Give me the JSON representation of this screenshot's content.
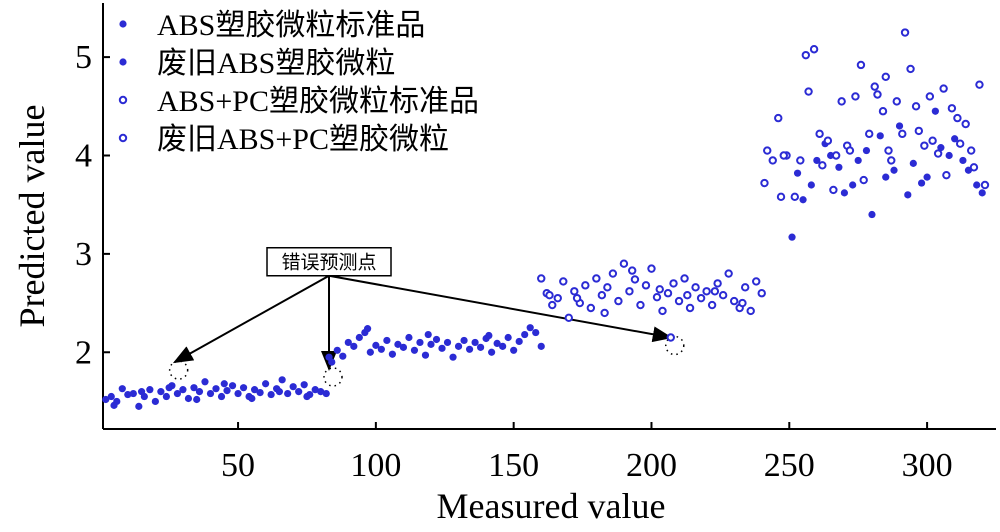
{
  "chart_data": {
    "type": "scatter",
    "xlabel": "Measured value",
    "ylabel": "Predicted value",
    "xlim": [
      1,
      325
    ],
    "ylim": [
      1.22,
      5.55
    ],
    "xticks": [
      50,
      100,
      150,
      200,
      250,
      300
    ],
    "yticks": [
      2,
      3,
      4,
      5
    ],
    "grid": false,
    "legend_position": "top-left",
    "accent_color": "#2b2bd4",
    "series": [
      {
        "name": "ABS塑胶微粒标准品",
        "marker": "filled",
        "points": [
          [
            2,
            1.52
          ],
          [
            4,
            1.55
          ],
          [
            6,
            1.5
          ],
          [
            8,
            1.63
          ],
          [
            10,
            1.57
          ],
          [
            12,
            1.58
          ],
          [
            14,
            1.45
          ],
          [
            16,
            1.55
          ],
          [
            18,
            1.62
          ],
          [
            20,
            1.5
          ],
          [
            22,
            1.6
          ],
          [
            24,
            1.55
          ],
          [
            26,
            1.66
          ],
          [
            28,
            1.58
          ],
          [
            30,
            1.62
          ],
          [
            32,
            1.53
          ],
          [
            34,
            1.64
          ],
          [
            36,
            1.6
          ],
          [
            38,
            1.7
          ],
          [
            40,
            1.58
          ],
          [
            42,
            1.63
          ],
          [
            44,
            1.55
          ],
          [
            46,
            1.61
          ],
          [
            48,
            1.66
          ],
          [
            50,
            1.58
          ],
          [
            52,
            1.64
          ],
          [
            54,
            1.55
          ],
          [
            56,
            1.62
          ],
          [
            58,
            1.59
          ],
          [
            60,
            1.68
          ],
          [
            62,
            1.57
          ],
          [
            64,
            1.63
          ],
          [
            66,
            1.72
          ],
          [
            68,
            1.58
          ],
          [
            70,
            1.65
          ],
          [
            72,
            1.6
          ],
          [
            74,
            1.67
          ],
          [
            76,
            1.57
          ],
          [
            78,
            1.62
          ],
          [
            80,
            1.6
          ],
          [
            82,
            1.58
          ],
          [
            5,
            1.46
          ],
          [
            15,
            1.6
          ],
          [
            25,
            1.64
          ],
          [
            35,
            1.52
          ],
          [
            45,
            1.68
          ],
          [
            55,
            1.53
          ],
          [
            65,
            1.6
          ],
          [
            75,
            1.55
          ],
          [
            83,
            1.95
          ],
          [
            84,
            1.9
          ],
          [
            86,
            2.02
          ],
          [
            88,
            1.96
          ],
          [
            90,
            2.1
          ],
          [
            92,
            2.06
          ],
          [
            94,
            2.15
          ],
          [
            96,
            2.2
          ],
          [
            98,
            2.0
          ],
          [
            100,
            2.07
          ],
          [
            102,
            2.03
          ],
          [
            104,
            2.12
          ],
          [
            106,
            1.98
          ],
          [
            108,
            2.08
          ],
          [
            110,
            2.05
          ],
          [
            112,
            2.15
          ],
          [
            114,
            2.02
          ],
          [
            116,
            2.1
          ],
          [
            118,
            1.97
          ],
          [
            120,
            2.08
          ],
          [
            122,
            2.13
          ],
          [
            124,
            2.04
          ],
          [
            126,
            2.1
          ],
          [
            128,
            1.95
          ],
          [
            130,
            2.06
          ],
          [
            132,
            2.12
          ],
          [
            134,
            2.03
          ],
          [
            136,
            2.1
          ],
          [
            138,
            2.05
          ],
          [
            140,
            2.14
          ],
          [
            142,
            2.0
          ],
          [
            144,
            2.09
          ],
          [
            146,
            2.06
          ],
          [
            148,
            2.15
          ],
          [
            150,
            2.02
          ],
          [
            152,
            2.11
          ],
          [
            154,
            2.18
          ],
          [
            156,
            2.25
          ],
          [
            158,
            2.2
          ],
          [
            160,
            2.06
          ],
          [
            97,
            2.24
          ],
          [
            119,
            2.18
          ],
          [
            141,
            2.17
          ]
        ]
      },
      {
        "name": "废旧ABS塑胶微粒",
        "marker": "filled",
        "points": [
          [
            251,
            3.17
          ],
          [
            255,
            3.55
          ],
          [
            260,
            3.95
          ],
          [
            265,
            4.0
          ],
          [
            270,
            3.62
          ],
          [
            275,
            3.95
          ],
          [
            280,
            3.4
          ],
          [
            285,
            3.78
          ],
          [
            290,
            4.3
          ],
          [
            295,
            3.92
          ],
          [
            300,
            3.78
          ],
          [
            305,
            4.08
          ],
          [
            310,
            4.17
          ],
          [
            315,
            3.85
          ],
          [
            320,
            3.62
          ],
          [
            253,
            3.82
          ],
          [
            263,
            4.12
          ],
          [
            273,
            3.7
          ],
          [
            283,
            4.2
          ],
          [
            293,
            3.6
          ],
          [
            303,
            4.45
          ],
          [
            313,
            3.95
          ],
          [
            258,
            3.7
          ],
          [
            268,
            3.88
          ],
          [
            278,
            4.05
          ],
          [
            288,
            3.85
          ],
          [
            298,
            3.72
          ],
          [
            308,
            4.0
          ],
          [
            318,
            3.7
          ]
        ]
      },
      {
        "name": "ABS+PC塑胶微粒标准品",
        "marker": "open",
        "points": [
          [
            160,
            2.75
          ],
          [
            162,
            2.6
          ],
          [
            164,
            2.48
          ],
          [
            166,
            2.55
          ],
          [
            168,
            2.72
          ],
          [
            170,
            2.35
          ],
          [
            172,
            2.62
          ],
          [
            174,
            2.5
          ],
          [
            176,
            2.68
          ],
          [
            178,
            2.45
          ],
          [
            180,
            2.75
          ],
          [
            182,
            2.58
          ],
          [
            184,
            2.66
          ],
          [
            186,
            2.8
          ],
          [
            188,
            2.52
          ],
          [
            190,
            2.9
          ],
          [
            192,
            2.62
          ],
          [
            194,
            2.74
          ],
          [
            196,
            2.48
          ],
          [
            198,
            2.68
          ],
          [
            200,
            2.85
          ],
          [
            202,
            2.56
          ],
          [
            204,
            2.42
          ],
          [
            206,
            2.6
          ],
          [
            208,
            2.7
          ],
          [
            210,
            2.52
          ],
          [
            212,
            2.75
          ],
          [
            214,
            2.45
          ],
          [
            216,
            2.66
          ],
          [
            218,
            2.55
          ],
          [
            220,
            2.62
          ],
          [
            222,
            2.48
          ],
          [
            224,
            2.7
          ],
          [
            226,
            2.58
          ],
          [
            228,
            2.8
          ],
          [
            230,
            2.52
          ],
          [
            232,
            2.45
          ],
          [
            234,
            2.66
          ],
          [
            236,
            2.42
          ],
          [
            238,
            2.72
          ],
          [
            240,
            2.6
          ],
          [
            163,
            2.58
          ],
          [
            173,
            2.55
          ],
          [
            183,
            2.4
          ],
          [
            193,
            2.83
          ],
          [
            203,
            2.64
          ],
          [
            213,
            2.58
          ],
          [
            223,
            2.62
          ],
          [
            233,
            2.5
          ],
          [
            207,
            2.15
          ]
        ]
      },
      {
        "name": "废旧ABS+PC塑胶微粒",
        "marker": "open",
        "points": [
          [
            241,
            3.72
          ],
          [
            242,
            4.05
          ],
          [
            244,
            3.95
          ],
          [
            246,
            4.38
          ],
          [
            247,
            3.58
          ],
          [
            249,
            4.0
          ],
          [
            252,
            3.58
          ],
          [
            254,
            3.95
          ],
          [
            256,
            5.02
          ],
          [
            257,
            4.65
          ],
          [
            259,
            5.08
          ],
          [
            261,
            4.22
          ],
          [
            262,
            3.9
          ],
          [
            264,
            4.15
          ],
          [
            266,
            3.65
          ],
          [
            267,
            4.0
          ],
          [
            269,
            4.55
          ],
          [
            271,
            4.1
          ],
          [
            272,
            4.05
          ],
          [
            274,
            4.6
          ],
          [
            276,
            4.92
          ],
          [
            277,
            3.75
          ],
          [
            279,
            4.22
          ],
          [
            281,
            4.7
          ],
          [
            282,
            4.62
          ],
          [
            284,
            4.45
          ],
          [
            286,
            4.05
          ],
          [
            287,
            3.95
          ],
          [
            289,
            4.55
          ],
          [
            291,
            4.22
          ],
          [
            292,
            5.25
          ],
          [
            294,
            4.88
          ],
          [
            296,
            4.5
          ],
          [
            297,
            4.25
          ],
          [
            299,
            4.1
          ],
          [
            301,
            4.6
          ],
          [
            302,
            4.15
          ],
          [
            304,
            4.02
          ],
          [
            306,
            4.68
          ],
          [
            307,
            3.8
          ],
          [
            309,
            4.48
          ],
          [
            311,
            4.38
          ],
          [
            312,
            4.12
          ],
          [
            314,
            4.32
          ],
          [
            316,
            4.05
          ],
          [
            317,
            3.88
          ],
          [
            319,
            4.72
          ],
          [
            321,
            3.7
          ],
          [
            248,
            4.0
          ],
          [
            285,
            4.8
          ]
        ]
      }
    ],
    "annotations": [
      {
        "text": "错误预测点",
        "anchor": [
          83,
          2.92
        ],
        "targets": [
          [
            27,
            1.9
          ],
          [
            83,
            1.83
          ],
          [
            207,
            2.15
          ]
        ]
      }
    ]
  }
}
